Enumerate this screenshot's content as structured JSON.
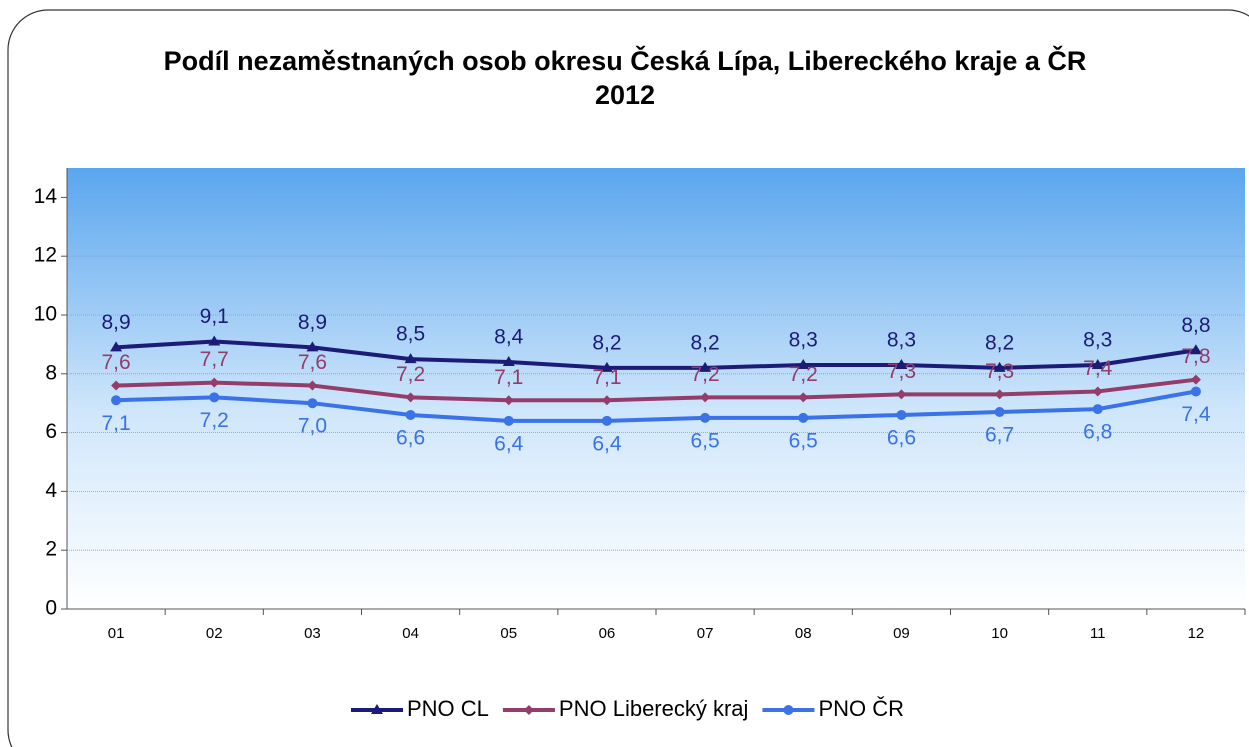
{
  "chart_data": {
    "type": "line",
    "title": "Podíl nezaměstnaných osob okresu Česká Lípa, Libereckého kraje a ČR 2012",
    "categories": [
      "01",
      "02",
      "03",
      "04",
      "05",
      "06",
      "07",
      "08",
      "09",
      "10",
      "11",
      "12"
    ],
    "series": [
      {
        "name": "PNO CL",
        "color": "#1c1c78",
        "marker": "triangle",
        "values": [
          8.9,
          9.1,
          8.9,
          8.5,
          8.4,
          8.2,
          8.2,
          8.3,
          8.3,
          8.2,
          8.3,
          8.8
        ],
        "value_labels": [
          "8,9",
          "9,1",
          "8,9",
          "8,5",
          "8,4",
          "8,2",
          "8,2",
          "8,3",
          "8,3",
          "8,2",
          "8,3",
          "8,8"
        ]
      },
      {
        "name": "PNO Liberecký kraj",
        "color": "#943c6a",
        "marker": "diamond",
        "values": [
          7.6,
          7.7,
          7.6,
          7.2,
          7.1,
          7.1,
          7.2,
          7.2,
          7.3,
          7.3,
          7.4,
          7.8
        ],
        "value_labels": [
          "7,6",
          "7,7",
          "7,6",
          "7,2",
          "7,1",
          "7,1",
          "7,2",
          "7,2",
          "7,3",
          "7,3",
          "7,4",
          "7,8"
        ]
      },
      {
        "name": "PNO ČR",
        "color": "#3a72e8",
        "marker": "circle",
        "values": [
          7.1,
          7.2,
          7.0,
          6.6,
          6.4,
          6.4,
          6.5,
          6.5,
          6.6,
          6.7,
          6.8,
          7.4
        ],
        "value_labels": [
          "7,1",
          "7,2",
          "7,0",
          "6,6",
          "6,4",
          "6,4",
          "6,5",
          "6,5",
          "6,6",
          "6,7",
          "6,8",
          "7,4"
        ]
      }
    ],
    "ylim": [
      0,
      15
    ],
    "yticks": [
      0,
      2,
      4,
      6,
      8,
      10,
      12,
      14
    ],
    "grid": true,
    "legend": "bottom"
  }
}
